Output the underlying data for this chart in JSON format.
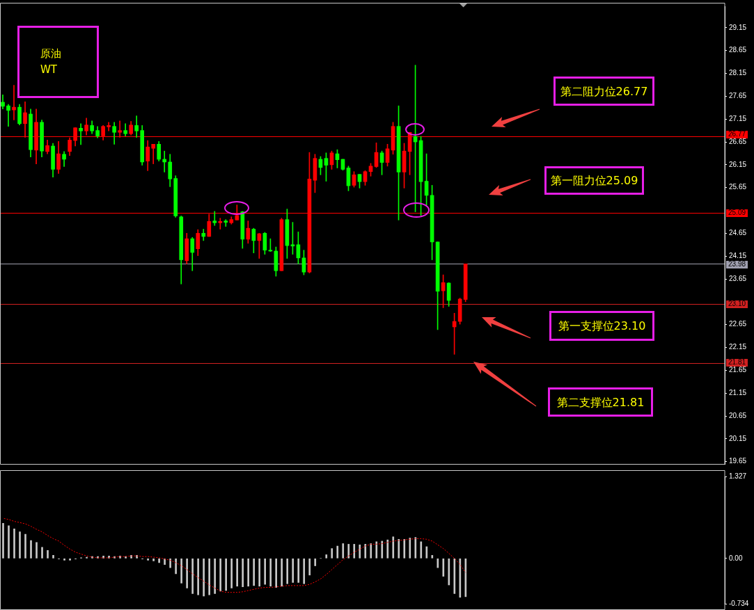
{
  "chart_data": [
    {
      "type": "candlestick",
      "title": "原油",
      "subtitle": "WT",
      "categories": [
        null,
        null,
        null,
        null,
        null,
        null,
        null,
        null,
        null,
        null,
        null,
        null,
        null,
        null,
        null,
        null,
        null,
        null,
        null,
        null,
        null,
        null,
        null,
        null,
        null,
        null,
        null,
        null,
        null,
        null,
        null,
        null,
        null,
        null,
        null,
        null,
        null,
        null,
        null,
        null,
        null,
        null,
        null,
        null,
        null,
        null,
        null,
        null,
        null,
        null,
        null,
        null,
        null,
        null,
        null,
        null,
        null,
        null,
        null,
        null,
        null,
        null,
        null,
        null,
        null,
        null,
        null,
        null,
        null,
        null,
        null,
        null,
        null,
        null,
        null,
        null,
        null,
        null,
        null,
        null,
        null,
        null,
        null,
        null,
        null,
        null,
        null,
        null,
        null,
        null,
        null,
        null,
        null,
        null,
        null,
        null,
        null,
        null,
        null,
        null,
        null,
        null,
        null,
        null,
        null,
        null,
        null,
        null,
        null,
        null,
        null,
        null,
        null,
        null,
        null,
        null,
        null,
        null,
        null,
        null,
        null,
        null,
        null,
        null,
        null,
        null,
        null,
        null,
        null,
        null
      ],
      "ohlc": [
        [
          27.52,
          27.68,
          27.37,
          27.43
        ],
        [
          27.44,
          27.47,
          26.99,
          27.34
        ],
        [
          27.35,
          27.89,
          27.13,
          27.41
        ],
        [
          27.41,
          27.47,
          27.02,
          27.05
        ],
        [
          27.05,
          27.53,
          26.75,
          27.29
        ],
        [
          27.26,
          27.37,
          26.32,
          26.48
        ],
        [
          26.47,
          27.37,
          26.17,
          27.08
        ],
        [
          27.08,
          27.13,
          26.32,
          26.45
        ],
        [
          26.44,
          26.69,
          26.39,
          26.57
        ],
        [
          26.56,
          26.62,
          25.88,
          26.05
        ],
        [
          26.05,
          26.66,
          25.96,
          26.39
        ],
        [
          26.38,
          26.44,
          26.11,
          26.27
        ],
        [
          26.44,
          26.74,
          26.35,
          26.69
        ],
        [
          26.68,
          26.96,
          26.56,
          26.96
        ],
        [
          26.95,
          27.05,
          26.59,
          26.89
        ],
        [
          26.89,
          27.17,
          26.8,
          27.02
        ],
        [
          27.01,
          27.11,
          26.83,
          26.89
        ],
        [
          26.9,
          26.99,
          26.74,
          26.78
        ],
        [
          26.78,
          27.01,
          26.69,
          26.99
        ],
        [
          26.98,
          27.08,
          26.89,
          27.01
        ],
        [
          26.99,
          27.08,
          26.6,
          26.86
        ],
        [
          26.86,
          27.11,
          26.75,
          26.9
        ],
        [
          26.9,
          27.05,
          26.78,
          26.83
        ],
        [
          26.83,
          27.1,
          26.8,
          27.02
        ],
        [
          27.01,
          27.22,
          26.75,
          26.89
        ],
        [
          26.9,
          27.01,
          26.14,
          26.21
        ],
        [
          26.23,
          26.68,
          26.02,
          26.54
        ],
        [
          26.51,
          26.6,
          26.17,
          26.6
        ],
        [
          26.6,
          26.66,
          26.23,
          26.27
        ],
        [
          26.27,
          26.45,
          25.99,
          26.21
        ],
        [
          26.21,
          26.38,
          25.67,
          25.84
        ],
        [
          25.85,
          25.91,
          25.0,
          25.03
        ],
        [
          25.01,
          25.03,
          23.54,
          24.07
        ],
        [
          24.05,
          24.65,
          23.98,
          24.53
        ],
        [
          24.53,
          24.56,
          23.83,
          24.23
        ],
        [
          24.31,
          24.73,
          24.16,
          24.65
        ],
        [
          24.65,
          24.74,
          24.49,
          24.58
        ],
        [
          24.58,
          25.07,
          24.58,
          24.91
        ],
        [
          24.92,
          25.13,
          24.82,
          24.88
        ],
        [
          24.88,
          24.98,
          24.74,
          24.91
        ],
        [
          24.92,
          24.95,
          24.8,
          24.89
        ],
        [
          24.88,
          25.01,
          24.85,
          24.95
        ],
        [
          24.94,
          25.27,
          24.94,
          25.04
        ],
        [
          25.12,
          25.13,
          24.32,
          24.52
        ],
        [
          24.52,
          24.92,
          24.43,
          24.76
        ],
        [
          24.74,
          24.76,
          24.22,
          24.49
        ],
        [
          24.49,
          24.65,
          24.1,
          24.64
        ],
        [
          24.65,
          24.67,
          24.19,
          24.28
        ],
        [
          24.28,
          24.53,
          24.25,
          24.26
        ],
        [
          24.26,
          24.35,
          23.71,
          23.83
        ],
        [
          23.83,
          24.98,
          23.83,
          24.95
        ],
        [
          24.95,
          25.18,
          24.1,
          24.38
        ],
        [
          24.4,
          24.89,
          24.19,
          24.37
        ],
        [
          24.4,
          24.68,
          23.98,
          24.11
        ],
        [
          24.11,
          24.28,
          23.74,
          23.8
        ],
        [
          23.8,
          26.42,
          23.78,
          25.84
        ],
        [
          25.81,
          26.38,
          25.54,
          26.29
        ],
        [
          26.27,
          26.33,
          25.93,
          26.09
        ],
        [
          26.29,
          26.41,
          25.79,
          26.14
        ],
        [
          26.15,
          26.45,
          26.05,
          26.41
        ],
        [
          26.39,
          26.48,
          26.08,
          26.26
        ],
        [
          26.27,
          26.27,
          26.03,
          26.05
        ],
        [
          26.08,
          26.12,
          25.58,
          25.69
        ],
        [
          25.7,
          26.0,
          25.66,
          25.93
        ],
        [
          25.94,
          25.94,
          25.64,
          25.78
        ],
        [
          25.78,
          26.02,
          25.7,
          26.0
        ],
        [
          26.0,
          26.18,
          25.9,
          26.12
        ],
        [
          26.11,
          26.63,
          26.09,
          26.42
        ],
        [
          26.41,
          26.45,
          25.93,
          26.2
        ],
        [
          26.2,
          26.6,
          26.12,
          26.5
        ],
        [
          26.47,
          27.08,
          26.38,
          26.99
        ],
        [
          26.99,
          27.44,
          24.94,
          25.99
        ],
        [
          25.99,
          26.62,
          25.64,
          26.45
        ],
        [
          26.44,
          26.86,
          25.93,
          26.86
        ],
        [
          26.77,
          28.33,
          25.12,
          26.65
        ],
        [
          26.68,
          26.77,
          25.04,
          25.78
        ],
        [
          25.79,
          26.39,
          25.27,
          25.48
        ],
        [
          25.48,
          25.7,
          24.07,
          24.46
        ],
        [
          24.46,
          24.46,
          22.54,
          23.38
        ],
        [
          23.39,
          23.74,
          23.02,
          23.57
        ],
        [
          23.56,
          23.57,
          23.05,
          23.18
        ],
        [
          22.6,
          22.9,
          22.0,
          22.72
        ],
        [
          22.72,
          23.23,
          22.66,
          23.21
        ],
        [
          23.2,
          23.98,
          23.15,
          23.98
        ],
        null,
        null,
        null,
        null,
        null,
        null,
        null,
        null,
        null,
        null,
        null,
        null,
        null,
        null,
        null,
        null,
        null,
        null,
        null,
        null,
        null,
        null,
        null,
        null,
        null,
        null,
        null,
        null,
        null,
        null,
        null,
        null,
        null,
        null,
        null,
        null,
        null,
        null,
        null,
        null,
        null,
        null,
        null,
        null,
        null,
        null
      ],
      "colors": [
        "#00ff00",
        "#00ff00",
        "#ff0000",
        "#00ff00",
        "#ff0000",
        "#00ff00",
        "#ff0000",
        "#00ff00",
        "#ff0000",
        "#00ff00",
        "#ff0000",
        "#00ff00",
        "#ff0000",
        "#ff0000",
        "#00ff00",
        "#ff0000",
        "#00ff00",
        "#00ff00",
        "#ff0000",
        "#ff0000",
        "#00ff00",
        "#ff0000",
        "#00ff00",
        "#ff0000",
        "#00ff00",
        "#00ff00",
        "#ff0000",
        "#ff0000",
        "#00ff00",
        "#00ff00",
        "#00ff00",
        "#00ff00",
        "#00ff00",
        "#ff0000",
        "#00ff00",
        "#ff0000",
        "#00ff00",
        "#ff0000",
        "#00ff00",
        "#ff0000",
        "#00ff00",
        "#ff0000",
        "#ff0000",
        "#00ff00",
        "#ff0000",
        "#00ff00",
        "#ff0000",
        "#00ff00",
        "#00ff00",
        "#00ff00",
        "#ff0000",
        "#00ff00",
        "#00ff00",
        "#00ff00",
        "#00ff00",
        "#ff0000",
        "#ff0000",
        "#00ff00",
        "#00ff00",
        "#ff0000",
        "#00ff00",
        "#00ff00",
        "#00ff00",
        "#ff0000",
        "#00ff00",
        "#ff0000",
        "#ff0000",
        "#ff0000",
        "#00ff00",
        "#ff0000",
        "#ff0000",
        "#00ff00",
        "#ff0000",
        "#ff0000",
        "#00ff00",
        "#00ff00",
        "#00ff00",
        "#00ff00",
        "#00ff00",
        "#ff0000",
        "#00ff00",
        "#ff0000",
        "#ff0000",
        "#ff0000",
        null,
        null,
        null,
        null,
        null,
        null,
        null,
        null,
        null,
        null,
        null,
        null,
        null,
        null,
        null,
        null,
        null,
        null,
        null,
        null,
        null,
        null,
        null,
        null,
        null,
        null,
        null,
        null,
        null,
        null,
        null,
        null,
        null,
        null,
        null,
        null,
        null,
        null,
        null,
        null,
        null,
        null,
        null,
        null,
        null,
        null
      ],
      "ylim": [
        19.6,
        29.62
      ],
      "yticks": [
        29.15,
        28.65,
        28.15,
        27.65,
        27.15,
        26.65,
        26.15,
        25.65,
        24.65,
        24.15,
        23.65,
        22.65,
        22.15,
        21.65,
        21.15,
        20.65,
        20.15,
        19.65
      ],
      "tick_labels": "y",
      "ref_lines": [
        {
          "axis": "y",
          "value": 26.77,
          "label": "26.77",
          "color": "#ff0000"
        },
        {
          "axis": "y",
          "value": 25.09,
          "label": "25.09",
          "color": "#ff0000"
        },
        {
          "axis": "y",
          "value": 23.98,
          "label": "23.98",
          "color": "#a0a0b0"
        },
        {
          "axis": "y",
          "value": 23.1,
          "label": "23.10",
          "color": "#d02020"
        },
        {
          "axis": "y",
          "value": 21.81,
          "label": "21.81",
          "color": "#d02020"
        }
      ],
      "annotations": [
        "第二阻力位26.77",
        "第一阻力位25.09",
        "第一支撑位23.10",
        "第二支撑位21.81"
      ]
    },
    {
      "type": "bar",
      "categories": [
        null,
        null,
        null,
        null,
        null,
        null,
        null,
        null,
        null,
        null,
        null,
        null,
        null,
        null,
        null,
        null,
        null,
        null,
        null,
        null,
        null,
        null,
        null,
        null,
        null,
        null,
        null,
        null,
        null,
        null,
        null,
        null,
        null,
        null,
        null,
        null,
        null,
        null,
        null,
        null,
        null,
        null,
        null,
        null,
        null,
        null,
        null,
        null,
        null,
        null,
        null,
        null,
        null,
        null,
        null,
        null,
        null,
        null,
        null,
        null,
        null,
        null,
        null,
        null,
        null,
        null,
        null,
        null,
        null,
        null,
        null,
        null,
        null,
        null,
        null,
        null,
        null,
        null,
        null,
        null,
        null,
        null,
        null,
        null,
        null,
        null,
        null,
        null,
        null,
        null,
        null,
        null,
        null,
        null,
        null,
        null,
        null,
        null,
        null,
        null,
        null,
        null,
        null,
        null,
        null,
        null,
        null,
        null,
        null,
        null,
        null,
        null,
        null,
        null,
        null,
        null,
        null,
        null,
        null,
        null,
        null,
        null,
        null,
        null,
        null,
        null,
        null,
        null,
        null,
        null
      ],
      "series": [
        {
          "type": "bar",
          "color": "#c8c8c8",
          "values": [
            0.57,
            0.53,
            0.48,
            0.43,
            0.39,
            0.29,
            0.26,
            0.18,
            0.13,
            0.05,
            -0.01,
            -0.03,
            -0.03,
            -0.01,
            0.01,
            0.02,
            0.03,
            0.03,
            0.04,
            0.04,
            0.03,
            0.04,
            0.03,
            0.05,
            0.05,
            -0.01,
            -0.03,
            -0.04,
            -0.07,
            -0.1,
            -0.15,
            -0.25,
            -0.4,
            -0.48,
            -0.57,
            -0.59,
            -0.61,
            -0.59,
            -0.57,
            -0.53,
            -0.52,
            -0.48,
            -0.45,
            -0.46,
            -0.45,
            -0.44,
            -0.45,
            -0.42,
            -0.45,
            -0.47,
            -0.45,
            -0.41,
            -0.39,
            -0.39,
            -0.41,
            -0.27,
            -0.12,
            0.0,
            0.06,
            0.16,
            0.2,
            0.24,
            0.23,
            0.23,
            0.22,
            0.23,
            0.24,
            0.27,
            0.28,
            0.3,
            0.35,
            0.31,
            0.31,
            0.33,
            0.34,
            0.27,
            0.19,
            0.05,
            -0.15,
            -0.29,
            -0.43,
            -0.57,
            -0.63,
            -0.62,
            null,
            null,
            null,
            null,
            null,
            null,
            null,
            null,
            null,
            null,
            null,
            null,
            null,
            null,
            null,
            null,
            null,
            null,
            null,
            null,
            null,
            null,
            null,
            null,
            null,
            null,
            null,
            null,
            null,
            null,
            null,
            null,
            null,
            null,
            null,
            null,
            null,
            null,
            null,
            null,
            null,
            null,
            null,
            null,
            null,
            null
          ]
        },
        {
          "type": "line",
          "color": "#ff0000",
          "line_style": "dotted",
          "values": [
            0.65,
            0.63,
            0.6,
            0.58,
            0.56,
            0.52,
            0.47,
            0.43,
            0.37,
            0.32,
            0.28,
            0.21,
            0.15,
            0.1,
            0.07,
            0.04,
            0.02,
            0.01,
            0.01,
            0.01,
            0.02,
            0.03,
            0.03,
            0.04,
            0.04,
            0.03,
            0.03,
            0.02,
            0.01,
            -0.01,
            -0.03,
            -0.07,
            -0.12,
            -0.18,
            -0.25,
            -0.31,
            -0.37,
            -0.43,
            -0.48,
            -0.53,
            -0.55,
            -0.55,
            -0.55,
            -0.54,
            -0.52,
            -0.5,
            -0.48,
            -0.47,
            -0.47,
            -0.46,
            -0.45,
            -0.44,
            -0.44,
            -0.44,
            -0.44,
            -0.42,
            -0.38,
            -0.33,
            -0.26,
            -0.18,
            -0.1,
            -0.02,
            0.04,
            0.1,
            0.15,
            0.2,
            0.23,
            0.23,
            0.24,
            0.26,
            0.28,
            0.29,
            0.3,
            0.31,
            0.32,
            0.32,
            0.31,
            0.28,
            0.22,
            0.16,
            0.08,
            0.0,
            -0.1,
            -0.23,
            null,
            null,
            null,
            null,
            null,
            null,
            null,
            null,
            null,
            null,
            null,
            null,
            null,
            null,
            null,
            null,
            null,
            null,
            null,
            null,
            null,
            null,
            null,
            null,
            null,
            null,
            null,
            null,
            null,
            null,
            null,
            null,
            null,
            null,
            null,
            null,
            null,
            null,
            null,
            null,
            null,
            null,
            null,
            null,
            null,
            null
          ]
        }
      ],
      "ylim": [
        -0.734,
        1.327
      ],
      "yticks": [
        1.327,
        {
          "value": 0,
          "label": "0.00"
        },
        -0.734
      ],
      "tick_labels": "y"
    }
  ]
}
